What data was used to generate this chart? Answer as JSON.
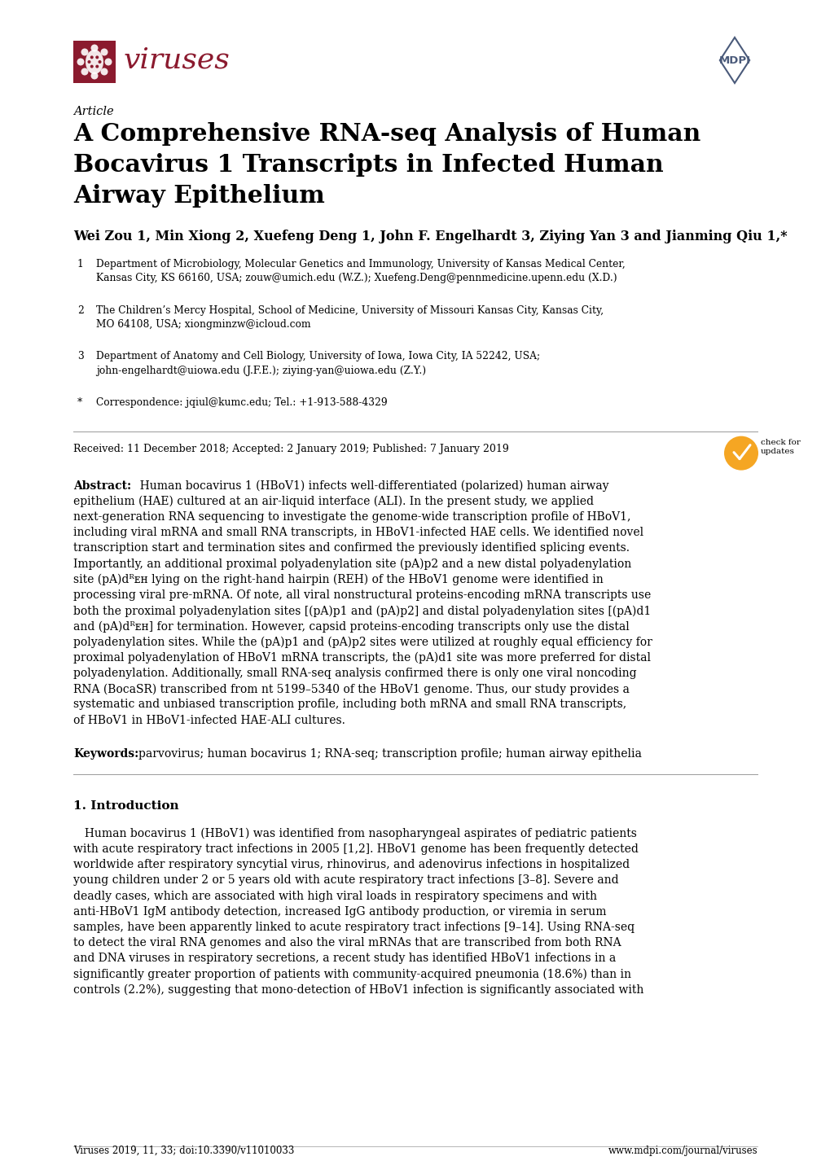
{
  "page_width": 10.2,
  "page_height": 14.42,
  "dpi": 100,
  "bg_color": "#ffffff",
  "journal_name": "viruses",
  "journal_color": "#8B1A2E",
  "article_type": "Article",
  "title_line1": "A Comprehensive RNA-seq Analysis of Human",
  "title_line2": "Bocavirus 1 Transcripts in Infected Human",
  "title_line3": "Airway Epithelium",
  "authors": "Wei Zou 1, Min Xiong 2, Xuefeng Deng 1, John F. Engelhardt 3, Ziying Yan 3 and Jianming Qiu 1,*",
  "affil1_num": "1",
  "affil1_text": "Department of Microbiology, Molecular Genetics and Immunology, University of Kansas Medical Center,\nKansas City, KS 66160, USA; zouw@umich.edu (W.Z.); Xuefeng.Deng@pennmedicine.upenn.edu (X.D.)",
  "affil2_num": "2",
  "affil2_text": "The Children’s Mercy Hospital, School of Medicine, University of Missouri Kansas City, Kansas City,\nMO 64108, USA; xiongminzw@icloud.com",
  "affil3_num": "3",
  "affil3_text": "Department of Anatomy and Cell Biology, University of Iowa, Iowa City, IA 52242, USA;\njohn-engelhardt@uiowa.edu (J.F.E.); ziying-yan@uiowa.edu (Z.Y.)",
  "affil_star_text": "Correspondence: jqiul@kumc.edu; Tel.: +1-913-588-4329",
  "received_line": "Received: 11 December 2018; Accepted: 2 January 2019; Published: 7 January 2019",
  "abstract_lines": [
    "Abstract:  Human bocavirus 1 (HBoV1) infects well-differentiated (polarized) human airway",
    "epithelium (HAE) cultured at an air-liquid interface (ALI). In the present study, we applied",
    "next-generation RNA sequencing to investigate the genome-wide transcription profile of HBoV1,",
    "including viral mRNA and small RNA transcripts, in HBoV1-infected HAE cells. We identified novel",
    "transcription start and termination sites and confirmed the previously identified splicing events.",
    "Importantly, an additional proximal polyadenylation site (pA)p2 and a new distal polyadenylation",
    "site (pA)dᴿᴇʜ lying on the right-hand hairpin (REH) of the HBoV1 genome were identified in",
    "processing viral pre-mRNA. Of note, all viral nonstructural proteins-encoding mRNA transcripts use",
    "both the proximal polyadenylation sites [(pA)p1 and (pA)p2] and distal polyadenylation sites [(pA)d1",
    "and (pA)dᴿᴇʜ] for termination. However, capsid proteins-encoding transcripts only use the distal",
    "polyadenylation sites. While the (pA)p1 and (pA)p2 sites were utilized at roughly equal efficiency for",
    "proximal polyadenylation of HBoV1 mRNA transcripts, the (pA)d1 site was more preferred for distal",
    "polyadenylation. Additionally, small RNA-seq analysis confirmed there is only one viral noncoding",
    "RNA (BocaSR) transcribed from nt 5199–5340 of the HBoV1 genome. Thus, our study provides a",
    "systematic and unbiased transcription profile, including both mRNA and small RNA transcripts,",
    "of HBoV1 in HBoV1-infected HAE-ALI cultures."
  ],
  "keywords_label": "Keywords:",
  "keywords_text": "parvovirus; human bocavirus 1; RNA-seq; transcription profile; human airway epithelia",
  "section1_title": "1. Introduction",
  "intro_lines": [
    " Human bocavirus 1 (HBoV1) was identified from nasopharyngeal aspirates of pediatric patients",
    "with acute respiratory tract infections in 2005 [1,2]. HBoV1 genome has been frequently detected",
    "worldwide after respiratory syncytial virus, rhinovirus, and adenovirus infections in hospitalized",
    "young children under 2 or 5 years old with acute respiratory tract infections [3–8]. Severe and",
    "deadly cases, which are associated with high viral loads in respiratory specimens and with",
    "anti-HBoV1 IgM antibody detection, increased IgG antibody production, or viremia in serum",
    "samples, have been apparently linked to acute respiratory tract infections [9–14]. Using RNA-seq",
    "to detect the viral RNA genomes and also the viral mRNAs that are transcribed from both RNA",
    "and DNA viruses in respiratory secretions, a recent study has identified HBoV1 infections in a",
    "significantly greater proportion of patients with community-acquired pneumonia (18.6%) than in",
    "controls (2.2%), suggesting that mono-detection of HBoV1 infection is significantly associated with"
  ],
  "footer_left": "Viruses 2019, 11, 33; doi:10.3390/v11010033",
  "footer_right": "www.mdpi.com/journal/viruses",
  "text_color": "#000000",
  "mdpi_color": "#4a5a7a"
}
